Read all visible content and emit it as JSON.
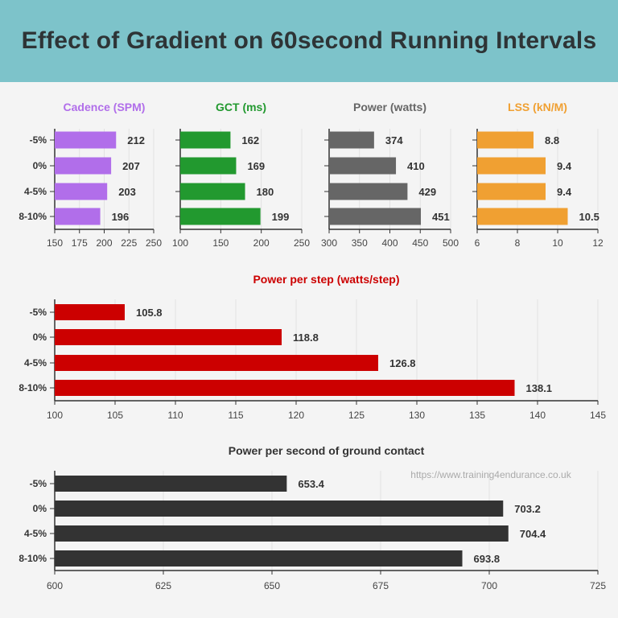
{
  "title": "Effect of Gradient on 60second Running Intervals",
  "watermark": "https://www.training4endurance.co.uk",
  "chart_data": [
    {
      "type": "bar",
      "orientation": "horizontal",
      "title": "Cadence (SPM)",
      "color": "#b16eea",
      "categories": [
        "-5%",
        "0%",
        "4-5%",
        "8-10%"
      ],
      "values": [
        212,
        207,
        203,
        196
      ],
      "value_labels": [
        "212",
        "207",
        "203",
        "196"
      ],
      "xlim": [
        150,
        250
      ],
      "ticks": [
        "150",
        "175",
        "200",
        "225",
        "250"
      ],
      "grid": true
    },
    {
      "type": "bar",
      "orientation": "horizontal",
      "title": "GCT (ms)",
      "color": "#22992f",
      "categories": [
        "-5%",
        "0%",
        "4-5%",
        "8-10%"
      ],
      "values": [
        162,
        169,
        180,
        199
      ],
      "value_labels": [
        "162",
        "169",
        "180",
        "199"
      ],
      "xlim": [
        100,
        250
      ],
      "ticks": [
        "100",
        "150",
        "200",
        "250"
      ],
      "grid": true
    },
    {
      "type": "bar",
      "orientation": "horizontal",
      "title": "Power (watts)",
      "color": "#666666",
      "categories": [
        "-5%",
        "0%",
        "4-5%",
        "8-10%"
      ],
      "values": [
        374,
        410,
        429,
        451
      ],
      "value_labels": [
        "374",
        "410",
        "429",
        "451"
      ],
      "xlim": [
        300,
        500
      ],
      "ticks": [
        "300",
        "350",
        "400",
        "450",
        "500"
      ],
      "grid": true
    },
    {
      "type": "bar",
      "orientation": "horizontal",
      "title": "LSS (kN/M)",
      "color": "#f0a032",
      "categories": [
        "-5%",
        "0%",
        "4-5%",
        "8-10%"
      ],
      "values": [
        8.8,
        9.4,
        9.4,
        10.5
      ],
      "value_labels": [
        "8.8",
        "9.4",
        "9.4",
        "10.5"
      ],
      "xlim": [
        6,
        12
      ],
      "ticks": [
        "6",
        "8",
        "10",
        "12"
      ],
      "grid": true
    },
    {
      "type": "bar",
      "orientation": "horizontal",
      "title": "Power per step (watts/step)",
      "color": "#cc0000",
      "categories": [
        "-5%",
        "0%",
        "4-5%",
        "8-10%"
      ],
      "values": [
        105.8,
        118.8,
        126.8,
        138.1
      ],
      "value_labels": [
        "105.8",
        "118.8",
        "126.8",
        "138.1"
      ],
      "xlim": [
        100,
        145
      ],
      "ticks": [
        "100",
        "105",
        "110",
        "115",
        "120",
        "125",
        "130",
        "135",
        "140",
        "145"
      ],
      "grid": true
    },
    {
      "type": "bar",
      "orientation": "horizontal",
      "title": "Power per second of ground contact",
      "color": "#333333",
      "categories": [
        "-5%",
        "0%",
        "4-5%",
        "8-10%"
      ],
      "values": [
        653.4,
        703.2,
        704.4,
        693.8
      ],
      "value_labels": [
        "653.4",
        "703.2",
        "704.4",
        "693.8"
      ],
      "xlim": [
        600,
        725
      ],
      "ticks": [
        "600",
        "625",
        "650",
        "675",
        "700",
        "725"
      ],
      "grid": true
    }
  ]
}
